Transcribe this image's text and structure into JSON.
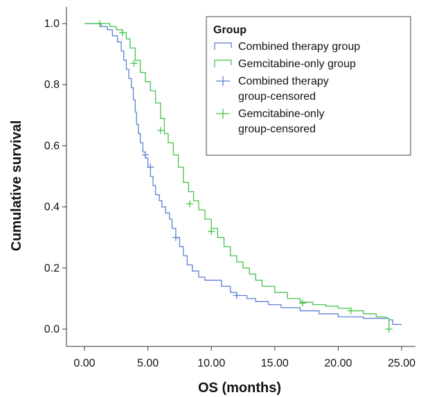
{
  "chart_data": {
    "type": "line",
    "subtype": "kaplan-meier-step",
    "xlabel": "OS (months)",
    "ylabel": "Cumulative survival",
    "xlim": [
      0,
      25
    ],
    "ylim": [
      0,
      1.0
    ],
    "x_ticks": [
      "0.00",
      "5.00",
      "10.00",
      "15.00",
      "20.00",
      "25.00"
    ],
    "y_ticks": [
      "0.0",
      "0.2",
      "0.4",
      "0.6",
      "0.8",
      "1.0"
    ],
    "grid": false,
    "legend": {
      "title": "Group",
      "placement": "top-right",
      "entries": [
        {
          "marker": "step",
          "lines": [
            "Combined therapy group"
          ],
          "color": "#5a7fd1"
        },
        {
          "marker": "step",
          "lines": [
            "Gemcitabine-only group"
          ],
          "color": "#45c24a"
        },
        {
          "marker": "cross",
          "lines": [
            "Combined therapy",
            "group-censored"
          ],
          "color": "#5a7fd1"
        },
        {
          "marker": "cross",
          "lines": [
            "Gemcitabine-only",
            "group-censored"
          ],
          "color": "#45c24a"
        }
      ]
    },
    "series": [
      {
        "name": "Combined therapy group",
        "color": "#5a7fd1",
        "points": [
          [
            0,
            1.0
          ],
          [
            1.3,
            0.99
          ],
          [
            1.8,
            0.98
          ],
          [
            2.2,
            0.96
          ],
          [
            2.6,
            0.94
          ],
          [
            2.9,
            0.91
          ],
          [
            3.1,
            0.88
          ],
          [
            3.3,
            0.85
          ],
          [
            3.5,
            0.82
          ],
          [
            3.7,
            0.79
          ],
          [
            3.85,
            0.75
          ],
          [
            4.0,
            0.71
          ],
          [
            4.1,
            0.67
          ],
          [
            4.25,
            0.64
          ],
          [
            4.4,
            0.61
          ],
          [
            4.6,
            0.58
          ],
          [
            4.8,
            0.56
          ],
          [
            5.0,
            0.53
          ],
          [
            5.2,
            0.5
          ],
          [
            5.4,
            0.47
          ],
          [
            5.6,
            0.44
          ],
          [
            5.9,
            0.42
          ],
          [
            6.1,
            0.4
          ],
          [
            6.4,
            0.38
          ],
          [
            6.7,
            0.36
          ],
          [
            6.9,
            0.33
          ],
          [
            7.2,
            0.3
          ],
          [
            7.5,
            0.27
          ],
          [
            7.8,
            0.24
          ],
          [
            8.1,
            0.21
          ],
          [
            8.5,
            0.19
          ],
          [
            9.0,
            0.17
          ],
          [
            9.5,
            0.16
          ],
          [
            10.0,
            0.16
          ],
          [
            10.8,
            0.14
          ],
          [
            11.5,
            0.12
          ],
          [
            12.0,
            0.11
          ],
          [
            12.8,
            0.1
          ],
          [
            13.5,
            0.09
          ],
          [
            14.5,
            0.08
          ],
          [
            15.5,
            0.07
          ],
          [
            17.0,
            0.06
          ],
          [
            18.5,
            0.05
          ],
          [
            20.0,
            0.04
          ],
          [
            22.0,
            0.035
          ],
          [
            24.0,
            0.03
          ],
          [
            24.3,
            0.015
          ],
          [
            25.0,
            0.015
          ]
        ],
        "censored": [
          [
            4.8,
            0.57
          ],
          [
            5.2,
            0.53
          ],
          [
            7.2,
            0.3
          ],
          [
            12.0,
            0.11
          ]
        ]
      },
      {
        "name": "Gemcitabine-only group",
        "color": "#45c24a",
        "points": [
          [
            0,
            1.0
          ],
          [
            1.2,
            1.0
          ],
          [
            2.0,
            0.99
          ],
          [
            2.5,
            0.98
          ],
          [
            3.0,
            0.97
          ],
          [
            3.3,
            0.95
          ],
          [
            3.6,
            0.92
          ],
          [
            4.0,
            0.88
          ],
          [
            4.4,
            0.84
          ],
          [
            4.8,
            0.81
          ],
          [
            5.2,
            0.78
          ],
          [
            5.6,
            0.74
          ],
          [
            6.0,
            0.69
          ],
          [
            6.3,
            0.64
          ],
          [
            6.6,
            0.61
          ],
          [
            7.0,
            0.57
          ],
          [
            7.4,
            0.53
          ],
          [
            7.8,
            0.48
          ],
          [
            8.2,
            0.45
          ],
          [
            8.6,
            0.42
          ],
          [
            9.0,
            0.39
          ],
          [
            9.5,
            0.36
          ],
          [
            10.0,
            0.33
          ],
          [
            10.5,
            0.3
          ],
          [
            11.0,
            0.27
          ],
          [
            11.5,
            0.24
          ],
          [
            12.0,
            0.22
          ],
          [
            12.5,
            0.2
          ],
          [
            13.0,
            0.18
          ],
          [
            13.5,
            0.16
          ],
          [
            14.0,
            0.14
          ],
          [
            15.0,
            0.12
          ],
          [
            16.0,
            0.1
          ],
          [
            17.0,
            0.088
          ],
          [
            18.0,
            0.08
          ],
          [
            19.0,
            0.075
          ],
          [
            20.0,
            0.068
          ],
          [
            21.0,
            0.06
          ],
          [
            22.0,
            0.05
          ],
          [
            23.0,
            0.04
          ],
          [
            23.8,
            0.035
          ],
          [
            24.0,
            0.0
          ]
        ],
        "censored": [
          [
            1.2,
            1.0
          ],
          [
            3.0,
            0.97
          ],
          [
            3.9,
            0.87
          ],
          [
            6.0,
            0.65
          ],
          [
            8.3,
            0.41
          ],
          [
            10.0,
            0.32
          ],
          [
            17.2,
            0.085
          ],
          [
            21.0,
            0.06
          ],
          [
            24.0,
            0.0
          ]
        ]
      }
    ]
  }
}
